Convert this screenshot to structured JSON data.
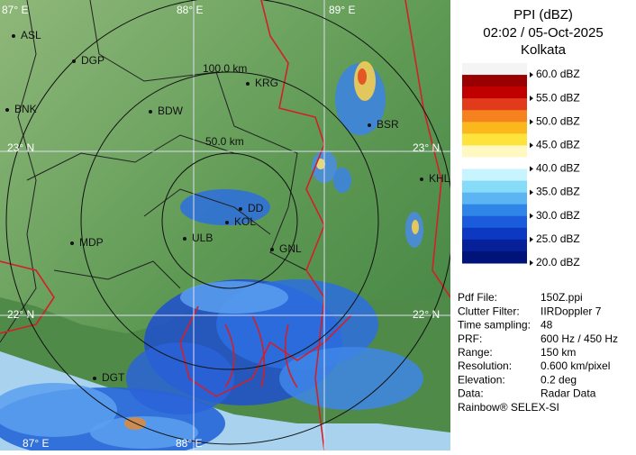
{
  "header": {
    "title": "PPI (dBZ)",
    "time": "02:02 / 05-Oct-2025",
    "station": "Kolkata"
  },
  "legend": [
    "60.0 dBZ",
    "55.0 dBZ",
    "50.0 dBZ",
    "45.0 dBZ",
    "40.0 dBZ",
    "35.0 dBZ",
    "30.0 dBZ",
    "25.0 dBZ",
    "20.0 dBZ"
  ],
  "info": [
    [
      "Pdf File:",
      "150Z.ppi"
    ],
    [
      "Clutter Filter:",
      "IIRDoppler 7"
    ],
    [
      "Time sampling:",
      "48"
    ],
    [
      "PRF:",
      "600 Hz / 450 Hz"
    ],
    [
      "Range:",
      "150 km"
    ],
    [
      "Resolution:",
      "0.600 km/pixel"
    ],
    [
      "Elevation:",
      "0.2 deg"
    ],
    [
      "Data:",
      "Radar Data"
    ]
  ],
  "footer": "Rainbow® SELEX-SI",
  "map": {
    "cities": [
      "ASL",
      "DGP",
      "BNK",
      "BDW",
      "KRG",
      "BSR",
      "KHL",
      "DD",
      "KOL",
      "ULB",
      "GNL",
      "MDP",
      "DGT"
    ],
    "grid_labels": [
      "87° E",
      "88° E",
      "89° E",
      "23° N",
      "23° N",
      "22° N",
      "22° N",
      "87° E",
      "88° E"
    ],
    "ring_labels": [
      "100.0 km",
      "50.0 km"
    ]
  }
}
